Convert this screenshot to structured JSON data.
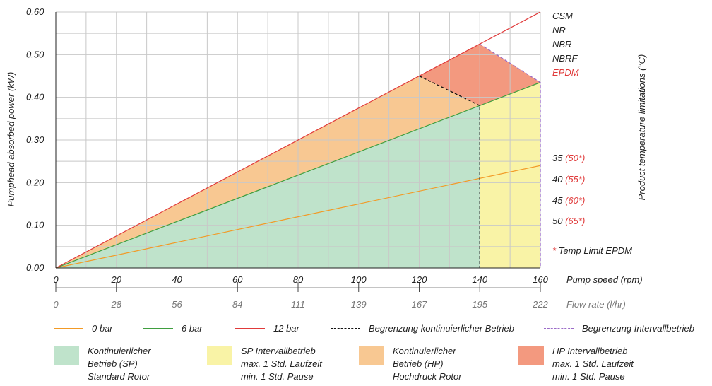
{
  "chart_data": {
    "type": "line",
    "ylabel": "Pumphead absorbed power (kW)",
    "y_ticks": [
      "0.00",
      "0.10",
      "0.20",
      "0.30",
      "0.40",
      "0.50",
      "0.60"
    ],
    "ylim": [
      0,
      0.6
    ],
    "x_ticks": [
      "0",
      "20",
      "40",
      "60",
      "80",
      "100",
      "120",
      "140",
      "160"
    ],
    "xlim": [
      0,
      160
    ],
    "xlabel": "Pump speed (rpm)",
    "x2_ticks": [
      "0",
      "28",
      "56",
      "84",
      "111",
      "139",
      "167",
      "195",
      "222"
    ],
    "x2label": "Flow rate (l/hr)",
    "grid": true,
    "series": [
      {
        "name": "0 bar",
        "color": "#f29a26",
        "x": [
          0,
          160
        ],
        "y": [
          0,
          0.24
        ]
      },
      {
        "name": "6 bar",
        "color": "#3f9e3f",
        "x": [
          0,
          160
        ],
        "y": [
          0,
          0.435
        ]
      },
      {
        "name": "12 bar",
        "color": "#e03a3a",
        "x": [
          0,
          160
        ],
        "y": [
          0,
          0.6
        ]
      }
    ],
    "limits": [
      {
        "name": "Begrenzung kontinuierlicher Betrieb",
        "color": "#111111",
        "style": "dashed",
        "x": [
          120,
          140,
          140
        ],
        "y": [
          0.45,
          0.3806,
          0
        ]
      },
      {
        "name": "Begrenzung Intervallbetrieb",
        "color": "#9b6bc8",
        "style": "dashed",
        "x": [
          140,
          160,
          160
        ],
        "y": [
          0.525,
          0.435,
          0
        ]
      }
    ],
    "regions": [
      {
        "name": "Kontinuierlicher Betrieb (SP) Standard Rotor",
        "color": "#bfe3cb",
        "polygon": [
          [
            0,
            0
          ],
          [
            140,
            0
          ],
          [
            140,
            0.3806
          ]
        ]
      },
      {
        "name": "SP Intervallbetrieb max. 1 Std. Laufzeit min. 1 Std. Pause",
        "color": "#f9f3a6",
        "polygon": [
          [
            140,
            0
          ],
          [
            160,
            0
          ],
          [
            160,
            0.435
          ],
          [
            140,
            0.3806
          ]
        ]
      },
      {
        "name": "Kontinuierlicher Betrieb (HP) Hochdruck Rotor",
        "color": "#f8c892",
        "polygon": [
          [
            0,
            0
          ],
          [
            120,
            0.45
          ],
          [
            140,
            0.3806
          ]
        ]
      },
      {
        "name": "HP Intervallbetrieb max. 1 Std. Laufzeit min. 1 Std. Pause",
        "color": "#f3997f",
        "polygon": [
          [
            120,
            0.45
          ],
          [
            140,
            0.525
          ],
          [
            160,
            0.435
          ],
          [
            140,
            0.3806
          ]
        ]
      }
    ],
    "right_label": "Product temperature limitations (°C)",
    "materials": [
      {
        "text": "CSM",
        "color": "#222222"
      },
      {
        "text": "NR",
        "color": "#222222"
      },
      {
        "text": "NBR",
        "color": "#222222"
      },
      {
        "text": "NBRF",
        "color": "#222222"
      },
      {
        "text": "EPDM",
        "color": "#e03a3a"
      }
    ],
    "temps": [
      {
        "value": "35",
        "epdm": "(50*)"
      },
      {
        "value": "40",
        "epdm": "(55*)"
      },
      {
        "value": "45",
        "epdm": "(60*)"
      },
      {
        "value": "50",
        "epdm": "(65*)"
      }
    ],
    "footnote": {
      "mark": "*",
      "text": "Temp Limit EPDM"
    }
  },
  "legend": {
    "lines": [
      {
        "label": "0 bar",
        "color": "#f29a26",
        "style": "solid"
      },
      {
        "label": "6 bar",
        "color": "#3f9e3f",
        "style": "solid"
      },
      {
        "label": "12 bar",
        "color": "#e03a3a",
        "style": "solid"
      },
      {
        "label": "Begrenzung kontinuierlicher Betrieb",
        "color": "#111111",
        "style": "dashed"
      },
      {
        "label": "Begrenzung Intervallbetrieb",
        "color": "#9b6bc8",
        "style": "dashed"
      }
    ],
    "boxes": [
      {
        "color": "#bfe3cb",
        "lines": [
          "Kontinuierlicher",
          "Betrieb (SP)",
          "Standard Rotor"
        ]
      },
      {
        "color": "#f9f3a6",
        "lines": [
          "SP Intervallbetrieb",
          "max. 1 Std. Laufzeit",
          "min. 1 Std. Pause"
        ]
      },
      {
        "color": "#f8c892",
        "lines": [
          "Kontinuierlicher",
          "Betrieb (HP)",
          "Hochdruck Rotor"
        ]
      },
      {
        "color": "#f3997f",
        "lines": [
          "HP Intervallbetrieb",
          "max. 1 Std. Laufzeit",
          "min. 1 Std. Pause"
        ]
      }
    ]
  }
}
